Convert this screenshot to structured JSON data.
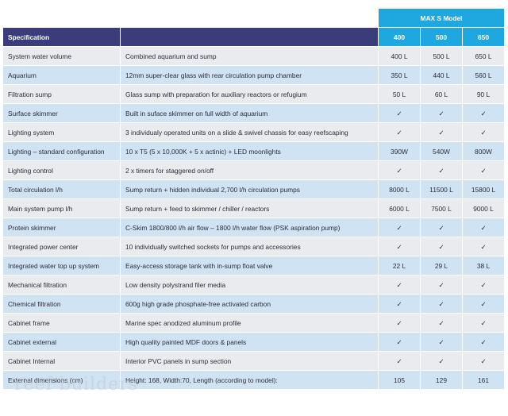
{
  "table": {
    "model_group_label": "MAX S Model",
    "header": {
      "spec_label": "Specification",
      "detail_label": "",
      "models": [
        "400",
        "500",
        "650"
      ]
    },
    "rows": [
      {
        "spec": "System water volume",
        "detail": "Combined aquarium and sump",
        "v": [
          "400 L",
          "500 L",
          "650 L"
        ]
      },
      {
        "spec": "Aquarium",
        "detail": "12mm super-clear glass with rear circulation pump chamber",
        "v": [
          "350 L",
          "440 L",
          "560 L"
        ]
      },
      {
        "spec": "Filtration sump",
        "detail": "Glass sump with preparation for auxiliary reactors or refugium",
        "v": [
          "50 L",
          "60 L",
          "90 L"
        ]
      },
      {
        "spec": "Surface skimmer",
        "detail": "Built in suface skimmer on full width of aquarium",
        "v": [
          "✓",
          "✓",
          "✓"
        ]
      },
      {
        "spec": "Lighting system",
        "detail": "3 individualy operated units on a slide & swivel chassis for easy reefscaping",
        "v": [
          "✓",
          "✓",
          "✓"
        ]
      },
      {
        "spec": "Lighting – standard configuration",
        "detail": "10 x T5 (5 x 10,000K + 5 x actinic) + LED moonlights",
        "v": [
          "390W",
          "540W",
          "800W"
        ]
      },
      {
        "spec": "Lighting control",
        "detail": "2 x timers for staggered on/off",
        "v": [
          "✓",
          "✓",
          "✓"
        ]
      },
      {
        "spec": "Total circulation l/h",
        "detail": "Sump return + hidden individual 2,700 l/h circulation pumps",
        "v": [
          "8000 L",
          "11500 L",
          "15800 L"
        ]
      },
      {
        "spec": "Main system pump l/h",
        "detail": "Sump return + feed to skimmer / chiller / reactors",
        "v": [
          "6000 L",
          "7500 L",
          "9000 L"
        ]
      },
      {
        "spec": "Protein skimmer",
        "detail": "C-Skim 1800/800 l/h air flow – 1800 l/h water flow (PSK aspiration pump)",
        "v": [
          "✓",
          "✓",
          "✓"
        ]
      },
      {
        "spec": "Integrated power center",
        "detail": "10 individually switched sockets for pumps and accessories",
        "v": [
          "✓",
          "✓",
          "✓"
        ]
      },
      {
        "spec": "Integrated water top up system",
        "detail": "Easy-access storage tank with in-sump float valve",
        "v": [
          "22 L",
          "29 L",
          "38 L"
        ]
      },
      {
        "spec": "Mechanical filtration",
        "detail": "Low density polystrand filer media",
        "v": [
          "✓",
          "✓",
          "✓"
        ]
      },
      {
        "spec": "Chemical filtration",
        "detail": "600g high grade phosphate-free activated carbon",
        "v": [
          "✓",
          "✓",
          "✓"
        ]
      },
      {
        "spec": "Cabinet frame",
        "detail": "Marine spec anodized aluminum profile",
        "v": [
          "✓",
          "✓",
          "✓"
        ]
      },
      {
        "spec": "Cabinet external",
        "detail": "High quality painted MDF doors & panels",
        "v": [
          "✓",
          "✓",
          "✓"
        ]
      },
      {
        "spec": "Cabinet Internal",
        "detail": "Interior PVC panels in sump section",
        "v": [
          "✓",
          "✓",
          "✓"
        ]
      },
      {
        "spec": "External dimensions (cm)",
        "detail": "Height: 168, Width:70, Length (according to model):",
        "v": [
          "105",
          "129",
          "161"
        ]
      }
    ]
  },
  "watermark": "reef builders",
  "colors": {
    "header_dark": "#3a3c7c",
    "header_blue": "#1fa8e0",
    "row_grey": "#e9ebee",
    "row_blue": "#cfe3f3"
  }
}
